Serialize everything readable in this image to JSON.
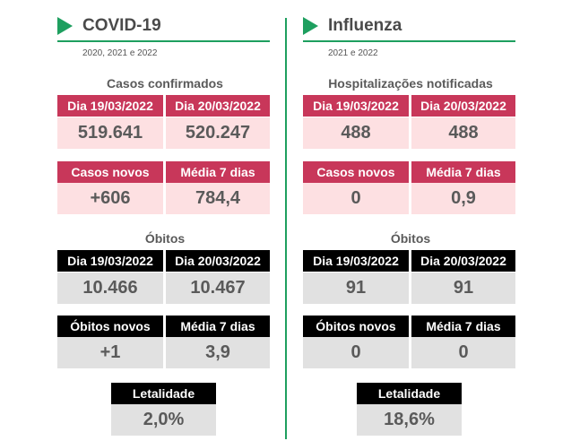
{
  "colors": {
    "accent": "#1e9f5f",
    "red": "#c8375a",
    "pink": "#fde0e2",
    "black": "#000000",
    "grey": "#e1e1e1"
  },
  "covid": {
    "icon": "play-triangle-icon",
    "title": "COVID-19",
    "years": "2020, 2021 e 2022",
    "cases_title": "Casos confirmados",
    "cases_date1": "Dia 19/03/2022",
    "cases_date2": "Dia 20/03/2022",
    "cases_val1": "519.641",
    "cases_val2": "520.247",
    "new_label": "Casos novos",
    "avg_label": "Média 7 dias",
    "new_val": "+606",
    "avg_val": "784,4",
    "deaths_title": "Óbitos",
    "deaths_date1": "Dia 19/03/2022",
    "deaths_date2": "Dia 20/03/2022",
    "deaths_val1": "10.466",
    "deaths_val2": "10.467",
    "new_deaths_label": "Óbitos novos",
    "avg_deaths_label": "Média 7 dias",
    "new_deaths_val": "+1",
    "avg_deaths_val": "3,9",
    "lethality_label": "Letalidade",
    "lethality_val": "2,0%"
  },
  "flu": {
    "icon": "play-triangle-icon",
    "title": "Influenza",
    "years": "2021 e 2022",
    "cases_title": "Hospitalizações notificadas",
    "cases_date1": "Dia 19/03/2022",
    "cases_date2": "Dia 20/03/2022",
    "cases_val1": "488",
    "cases_val2": "488",
    "new_label": "Casos novos",
    "avg_label": "Média 7 dias",
    "new_val": "0",
    "avg_val": "0,9",
    "deaths_title": "Óbitos",
    "deaths_date1": "Dia 19/03/2022",
    "deaths_date2": "Dia 20/03/2022",
    "deaths_val1": "91",
    "deaths_val2": "91",
    "new_deaths_label": "Óbitos novos",
    "avg_deaths_label": "Média 7 dias",
    "new_deaths_val": "0",
    "avg_deaths_val": "0",
    "lethality_label": "Letalidade",
    "lethality_val": "18,6%"
  }
}
